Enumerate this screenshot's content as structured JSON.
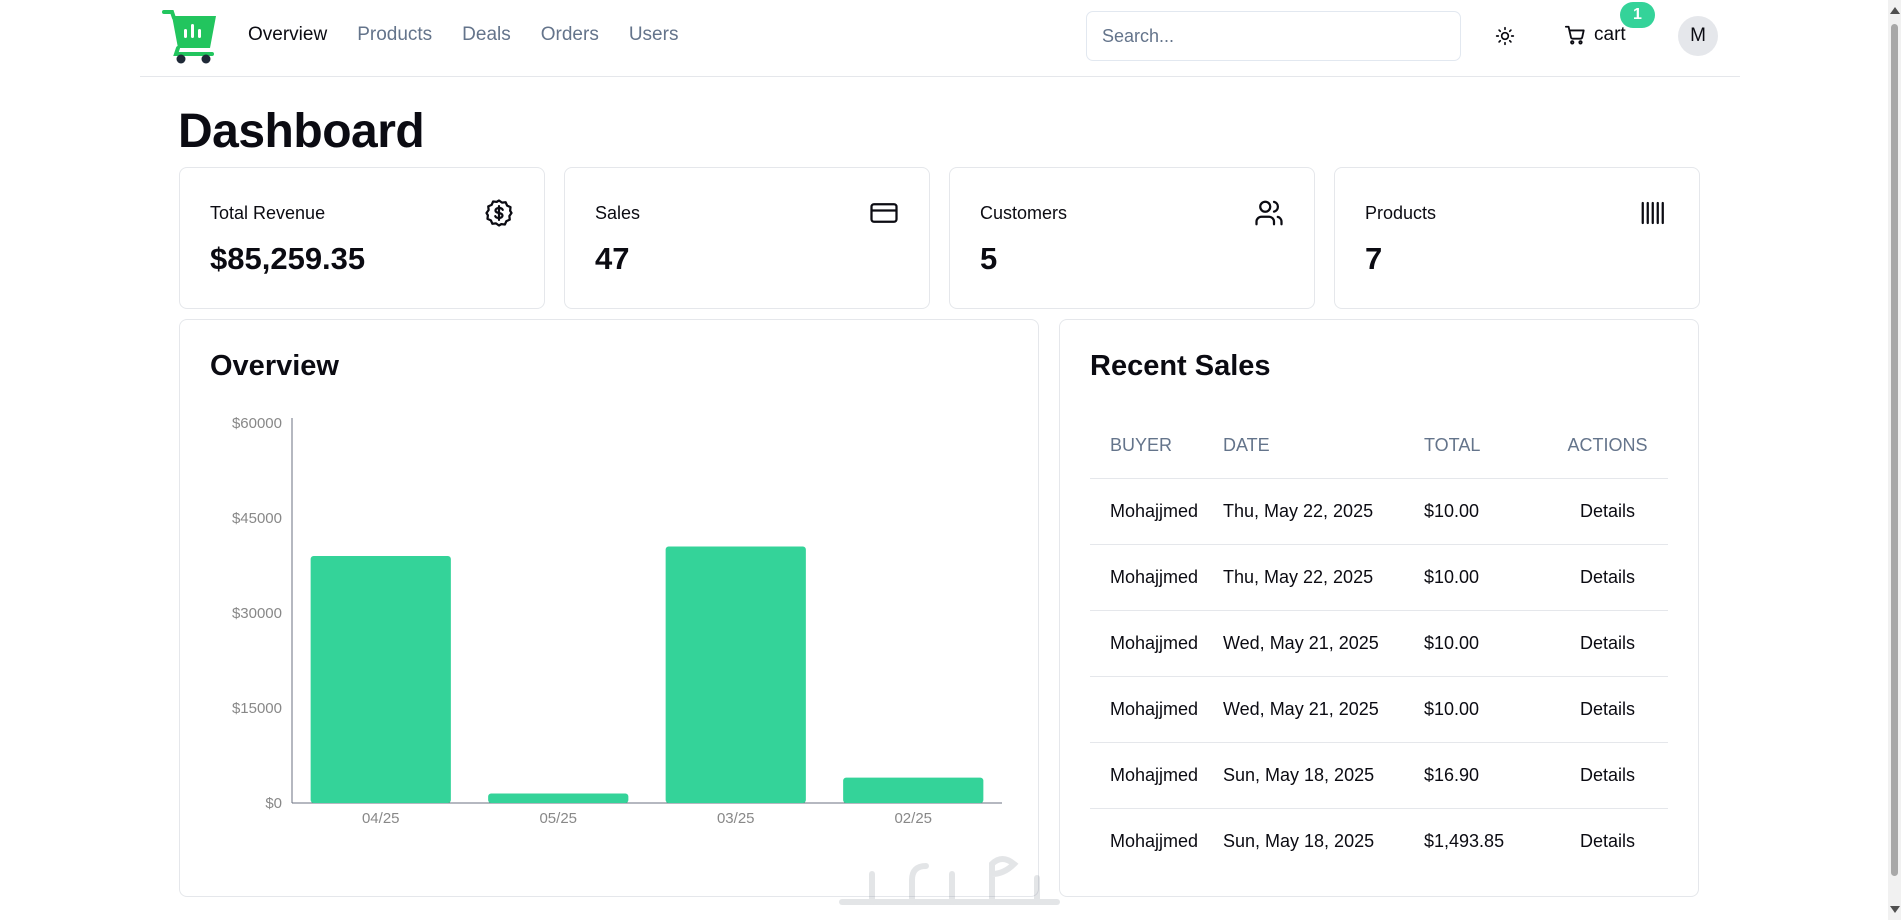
{
  "nav": {
    "items": [
      {
        "label": "Overview",
        "active": true
      },
      {
        "label": "Products",
        "active": false
      },
      {
        "label": "Deals",
        "active": false
      },
      {
        "label": "Orders",
        "active": false
      },
      {
        "label": "Users",
        "active": false
      }
    ]
  },
  "search": {
    "placeholder": "Search..."
  },
  "cart": {
    "label": "cart",
    "count": "1"
  },
  "user": {
    "initial": "M"
  },
  "page": {
    "title": "Dashboard"
  },
  "stats": [
    {
      "label": "Total Revenue",
      "value": "$85,259.35",
      "icon": "dollar-badge-icon"
    },
    {
      "label": "Sales",
      "value": "47",
      "icon": "credit-card-icon"
    },
    {
      "label": "Customers",
      "value": "5",
      "icon": "users-icon"
    },
    {
      "label": "Products",
      "value": "7",
      "icon": "barcode-icon"
    }
  ],
  "overview": {
    "title": "Overview"
  },
  "chart_data": {
    "type": "bar",
    "title": "Overview",
    "categories": [
      "04/25",
      "05/25",
      "03/25",
      "02/25"
    ],
    "values": [
      39000,
      1500,
      40500,
      4000
    ],
    "ylim": [
      0,
      60000
    ],
    "yticks": [
      0,
      15000,
      30000,
      45000,
      60000
    ],
    "ytick_labels": [
      "$0",
      "$15000",
      "$30000",
      "$45000",
      "$60000"
    ],
    "xlabel": "",
    "ylabel": "",
    "grid": false,
    "color": "#34d399"
  },
  "recent_sales": {
    "title": "Recent Sales",
    "columns": [
      "BUYER",
      "DATE",
      "TOTAL",
      "ACTIONS"
    ],
    "rows": [
      {
        "buyer": "Mohajjmed",
        "date": "Thu, May 22, 2025",
        "total": "$10.00",
        "action": "Details"
      },
      {
        "buyer": "Mohajjmed",
        "date": "Thu, May 22, 2025",
        "total": "$10.00",
        "action": "Details"
      },
      {
        "buyer": "Mohajjmed",
        "date": "Wed, May 21, 2025",
        "total": "$10.00",
        "action": "Details"
      },
      {
        "buyer": "Mohajjmed",
        "date": "Wed, May 21, 2025",
        "total": "$10.00",
        "action": "Details"
      },
      {
        "buyer": "Mohajjmed",
        "date": "Sun, May 18, 2025",
        "total": "$16.90",
        "action": "Details"
      },
      {
        "buyer": "Mohajjmed",
        "date": "Sun, May 18, 2025",
        "total": "$1,493.85",
        "action": "Details"
      }
    ]
  },
  "colors": {
    "accent": "#34d399",
    "logo": "#22c55e",
    "muted": "#64748b",
    "border": "#e5e7eb"
  }
}
